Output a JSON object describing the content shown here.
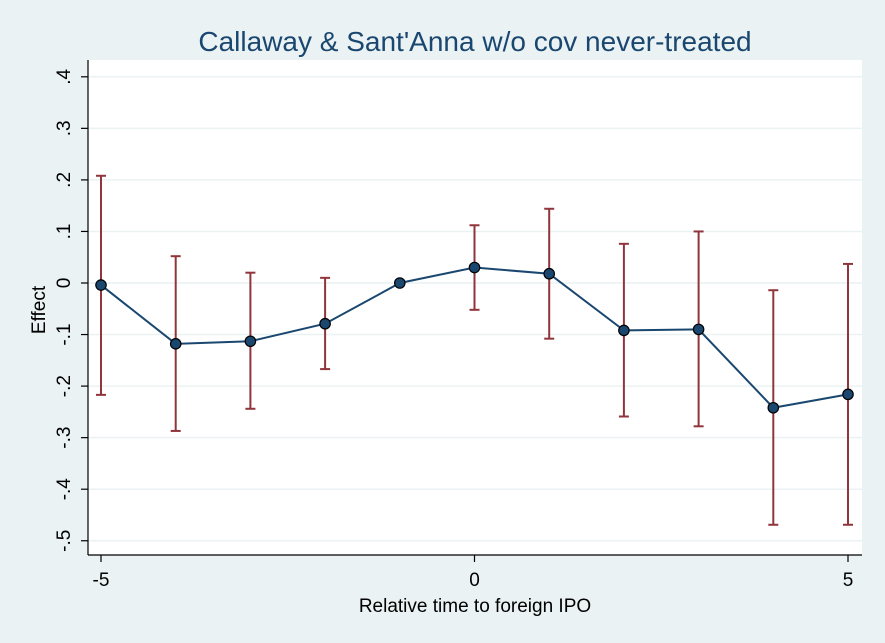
{
  "chart_data": {
    "type": "line",
    "title": "Callaway & Sant'Anna w/o cov never-treated",
    "xlabel": "Relative time to foreign IPO",
    "ylabel": "Effect",
    "xlim": [
      -5,
      5
    ],
    "ylim": [
      -0.5,
      0.4
    ],
    "x_ticks": [
      -5,
      0,
      5
    ],
    "x_tick_labels": [
      "-5",
      "0",
      "5"
    ],
    "y_ticks": [
      -0.5,
      -0.4,
      -0.3,
      -0.2,
      -0.1,
      0,
      0.1,
      0.2,
      0.3,
      0.4
    ],
    "y_tick_labels": [
      "-.5",
      "-.4",
      "-.3",
      "-.2",
      "-.1",
      "0",
      ".1",
      ".2",
      ".3",
      ".4"
    ],
    "grid": true,
    "legend": "none",
    "series": [
      {
        "x": [
          -5,
          -4,
          -3,
          -2,
          -1,
          0,
          1,
          2,
          3,
          4,
          5
        ],
        "values": [
          -0.004,
          -0.118,
          -0.113,
          -0.079,
          0.0,
          0.03,
          0.018,
          -0.092,
          -0.09,
          -0.242,
          -0.216
        ],
        "ci_low": [
          -0.217,
          -0.287,
          -0.244,
          -0.167,
          0.0,
          -0.052,
          -0.108,
          -0.259,
          -0.278,
          -0.469,
          -0.469
        ],
        "ci_high": [
          0.208,
          0.052,
          0.02,
          0.01,
          0.0,
          0.112,
          0.144,
          0.076,
          0.1,
          -0.014,
          0.037
        ]
      }
    ],
    "colors": {
      "plot_bg": "#ffffff",
      "outer_bg": "#eaf2f3",
      "line": "#1a476f",
      "marker_fill": "#1a476f",
      "marker_edge": "#000000",
      "ci": "#90353b"
    }
  }
}
